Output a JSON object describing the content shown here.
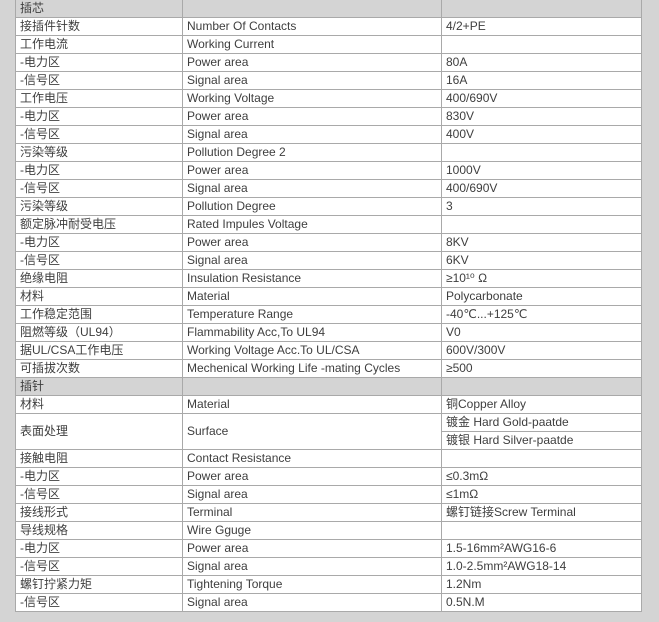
{
  "page": {
    "colors": {
      "background": "#d4d4d4",
      "cell_background": "#ffffff",
      "border": "#a9a9a9",
      "text": "#3e3e3e"
    }
  },
  "table": {
    "rows": [
      {
        "type": "section",
        "label": "插芯"
      },
      {
        "c1": "接插件针数",
        "c2": "Number Of Contacts",
        "c3": "4/2+PE"
      },
      {
        "c1": "工作电流",
        "c2": "Working Current",
        "c3": ""
      },
      {
        "c1": "-电力区",
        "c2": "Power area",
        "c3": "80A"
      },
      {
        "c1": "-信号区",
        "c2": "Signal area",
        "c3": "16A"
      },
      {
        "c1": "工作电压",
        "c2": "Working Voltage",
        "c3": "400/690V"
      },
      {
        "c1": "-电力区",
        "c2": "Power area",
        "c3": "830V"
      },
      {
        "c1": "-信号区",
        "c2": "Signal area",
        "c3": "400V"
      },
      {
        "c1": "污染等级",
        "c2": "Pollution Degree 2",
        "c3": ""
      },
      {
        "c1": "-电力区",
        "c2": "Power area",
        "c3": "1000V"
      },
      {
        "c1": "-信号区",
        "c2": "Signal area",
        "c3": "400/690V"
      },
      {
        "c1": "污染等级",
        "c2": "Pollution Degree",
        "c3": "3"
      },
      {
        "c1": "额定脉冲耐受电压",
        "c2": "Rated Impules Voltage",
        "c3": ""
      },
      {
        "c1": "-电力区",
        "c2": "Power area",
        "c3": "8KV"
      },
      {
        "c1": "-信号区",
        "c2": "Signal area",
        "c3": "6KV"
      },
      {
        "c1": "绝缘电阻",
        "c2": "Insulation Resistance",
        "c3": "≥10¹⁰ Ω"
      },
      {
        "c1": "材料",
        "c2": "Material",
        "c3": "Polycarbonate"
      },
      {
        "c1": "工作稳定范围",
        "c2": "Temperature Range",
        "c3": "-40℃...+125℃"
      },
      {
        "c1": "阻燃等级（UL94）",
        "c2": "Flammability Acc,To UL94",
        "c3": "V0"
      },
      {
        "c1": "据UL/CSA工作电压",
        "c2": "Working Voltage Acc.To UL/CSA",
        "c3": "600V/300V"
      },
      {
        "c1": "可插拔次数",
        "c2": "Mechenical Working Life -mating Cycles",
        "c3": "≥500"
      },
      {
        "type": "section",
        "label": "插针"
      },
      {
        "c1": "材料",
        "c2": "Material",
        "c3": "铜Copper Alloy"
      },
      {
        "type": "merged",
        "c1": "表面处理",
        "c2": "Surface",
        "c3": [
          "镀金 Hard Gold-paatde",
          "镀银 Hard Silver-paatde"
        ]
      },
      {
        "c1": "接触电阻",
        "c2": "Contact Resistance",
        "c3": ""
      },
      {
        "c1": "-电力区",
        "c2": "Power area",
        "c3": "≤0.3mΩ"
      },
      {
        "c1": "-信号区",
        "c2": "Signal area",
        "c3": "≤1mΩ"
      },
      {
        "c1": "接线形式",
        "c2": "Terminal",
        "c3": "螺钉链接Screw Terminal"
      },
      {
        "c1": "导线规格",
        "c2": "Wire Gguge",
        "c3": ""
      },
      {
        "c1": "-电力区",
        "c2": "Power area",
        "c3": "1.5-16mm²AWG16-6"
      },
      {
        "c1": "-信号区",
        "c2": "Signal area",
        "c3": "1.0-2.5mm²AWG18-14"
      },
      {
        "c1": "螺钉拧紧力矩",
        "c2": "Tightening Torque",
        "c3": "1.2Nm"
      },
      {
        "c1": "-信号区",
        "c2": "Signal area",
        "c3": "0.5N.M"
      }
    ]
  }
}
